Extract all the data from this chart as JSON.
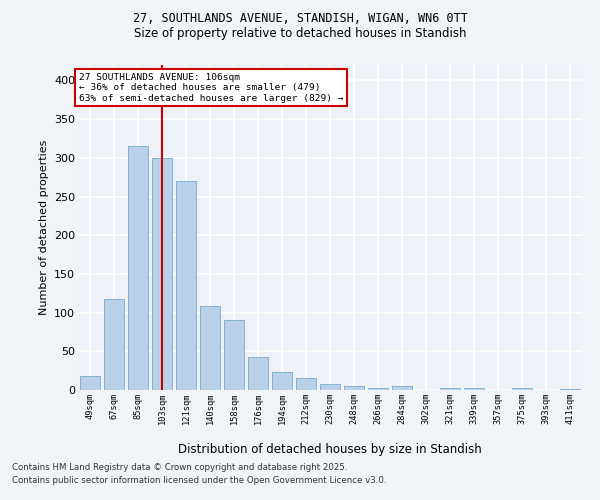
{
  "title_line1": "27, SOUTHLANDS AVENUE, STANDISH, WIGAN, WN6 0TT",
  "title_line2": "Size of property relative to detached houses in Standish",
  "xlabel": "Distribution of detached houses by size in Standish",
  "ylabel": "Number of detached properties",
  "bar_color": "#b8d0e8",
  "bar_edge_color": "#7aaacc",
  "background_color": "#eef2f8",
  "grid_color": "#ffffff",
  "vline_x": 2,
  "vline_color": "#cc0000",
  "annotation_title": "27 SOUTHLANDS AVENUE: 106sqm",
  "annotation_line2": "← 36% of detached houses are smaller (479)",
  "annotation_line3": "63% of semi-detached houses are larger (829) →",
  "annotation_box_color": "#ffffff",
  "annotation_border_color": "#cc0000",
  "footer_line1": "Contains HM Land Registry data © Crown copyright and database right 2025.",
  "footer_line2": "Contains public sector information licensed under the Open Government Licence v3.0.",
  "categories": [
    "49sqm",
    "67sqm",
    "85sqm",
    "103sqm",
    "121sqm",
    "140sqm",
    "158sqm",
    "176sqm",
    "194sqm",
    "212sqm",
    "230sqm",
    "248sqm",
    "266sqm",
    "284sqm",
    "302sqm",
    "321sqm",
    "339sqm",
    "357sqm",
    "375sqm",
    "393sqm",
    "411sqm"
  ],
  "values": [
    18,
    118,
    315,
    300,
    270,
    108,
    90,
    43,
    23,
    15,
    8,
    5,
    3,
    5,
    0,
    2,
    3,
    0,
    2,
    0,
    1
  ],
  "vline_bar_index": 3,
  "ylim": [
    0,
    420
  ],
  "yticks": [
    0,
    50,
    100,
    150,
    200,
    250,
    300,
    350,
    400
  ]
}
